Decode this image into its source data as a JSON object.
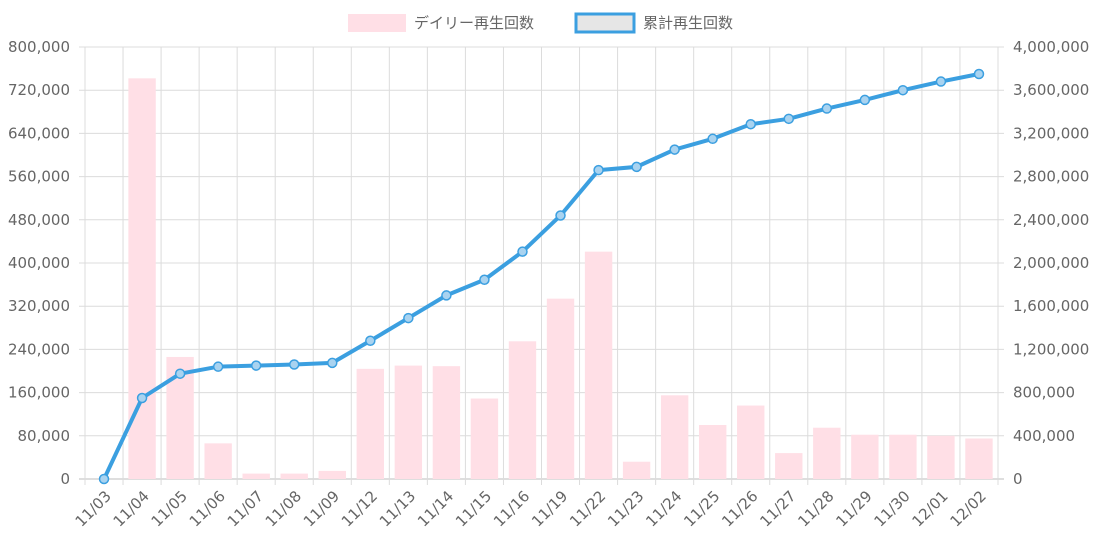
{
  "colors": {
    "bar_fill": "#ffdfe6",
    "line_stroke": "#3b9fe0",
    "point_fill": "#a9d3f0",
    "legend_swatch_line_fill": "#e6e6e6",
    "grid": "#dcdcdc",
    "grid_zero": "#bdbdbd",
    "text": "#666666"
  },
  "chart_data": {
    "type": "bar",
    "title": "",
    "xlabel": "",
    "ylabel": "",
    "legend_position": "top",
    "grid": true,
    "categories": [
      "11/03",
      "11/04",
      "11/05",
      "11/06",
      "11/07",
      "11/08",
      "11/09",
      "11/12",
      "11/13",
      "11/14",
      "11/15",
      "11/16",
      "11/19",
      "11/22",
      "11/23",
      "11/24",
      "11/25",
      "11/26",
      "11/27",
      "11/28",
      "11/29",
      "11/30",
      "12/01",
      "12/02"
    ],
    "left_axis": {
      "ylim": [
        0,
        800000
      ],
      "ticks": [
        "0",
        "80,000",
        "160,000",
        "240,000",
        "320,000",
        "400,000",
        "480,000",
        "560,000",
        "640,000",
        "720,000",
        "800,000"
      ]
    },
    "right_axis": {
      "ylim": [
        0,
        4000000
      ],
      "ticks": [
        "0",
        "400,000",
        "800,000",
        "1,200,000",
        "1,600,000",
        "2,000,000",
        "2,400,000",
        "2,800,000",
        "3,200,000",
        "3,600,000",
        "4,000,000"
      ]
    },
    "series": [
      {
        "name": "デイリー再生回数",
        "type": "bar",
        "axis": "left",
        "values": [
          0,
          742000,
          226000,
          66000,
          10000,
          10000,
          15000,
          204000,
          210000,
          209000,
          149000,
          255000,
          334000,
          421000,
          32000,
          155000,
          100000,
          136000,
          48000,
          95000,
          82000,
          82000,
          80000,
          75000
        ]
      },
      {
        "name": "累計再生回数",
        "type": "line",
        "axis": "right",
        "values": [
          0,
          750000,
          975000,
          1040000,
          1050000,
          1060000,
          1075000,
          1280000,
          1490000,
          1700000,
          1845000,
          2105000,
          2440000,
          2860000,
          2890000,
          3050000,
          3150000,
          3285000,
          3335000,
          3430000,
          3510000,
          3600000,
          3680000,
          3750000
        ]
      }
    ]
  }
}
